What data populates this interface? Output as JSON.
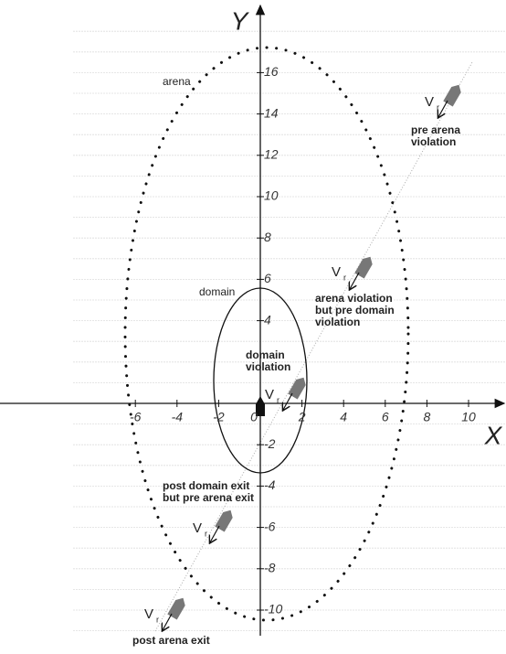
{
  "axes": {
    "x_label": "X",
    "y_label": "Y",
    "xticks": [
      -6,
      -4,
      -2,
      0,
      2,
      4,
      6,
      8,
      10
    ],
    "yticks": [
      16,
      14,
      12,
      10,
      8,
      6,
      4,
      -2,
      -4,
      -6,
      -8,
      -10
    ]
  },
  "regions": {
    "arena": "arena",
    "domain": "domain"
  },
  "vehicles": [
    {
      "label": "V",
      "sub": "r",
      "note": [
        "pre arena",
        "violation"
      ]
    },
    {
      "label": "V",
      "sub": "r",
      "note": [
        "arena violation",
        "but pre domain",
        "violation"
      ]
    },
    {
      "label": "V",
      "sub": "r",
      "note": [
        "domain",
        "violation"
      ]
    },
    {
      "label": "V",
      "sub": "r",
      "note": [
        "post domain exit",
        "but pre arena exit"
      ]
    },
    {
      "label": "V",
      "sub": "r",
      "note": [
        "post arena exit"
      ]
    }
  ]
}
